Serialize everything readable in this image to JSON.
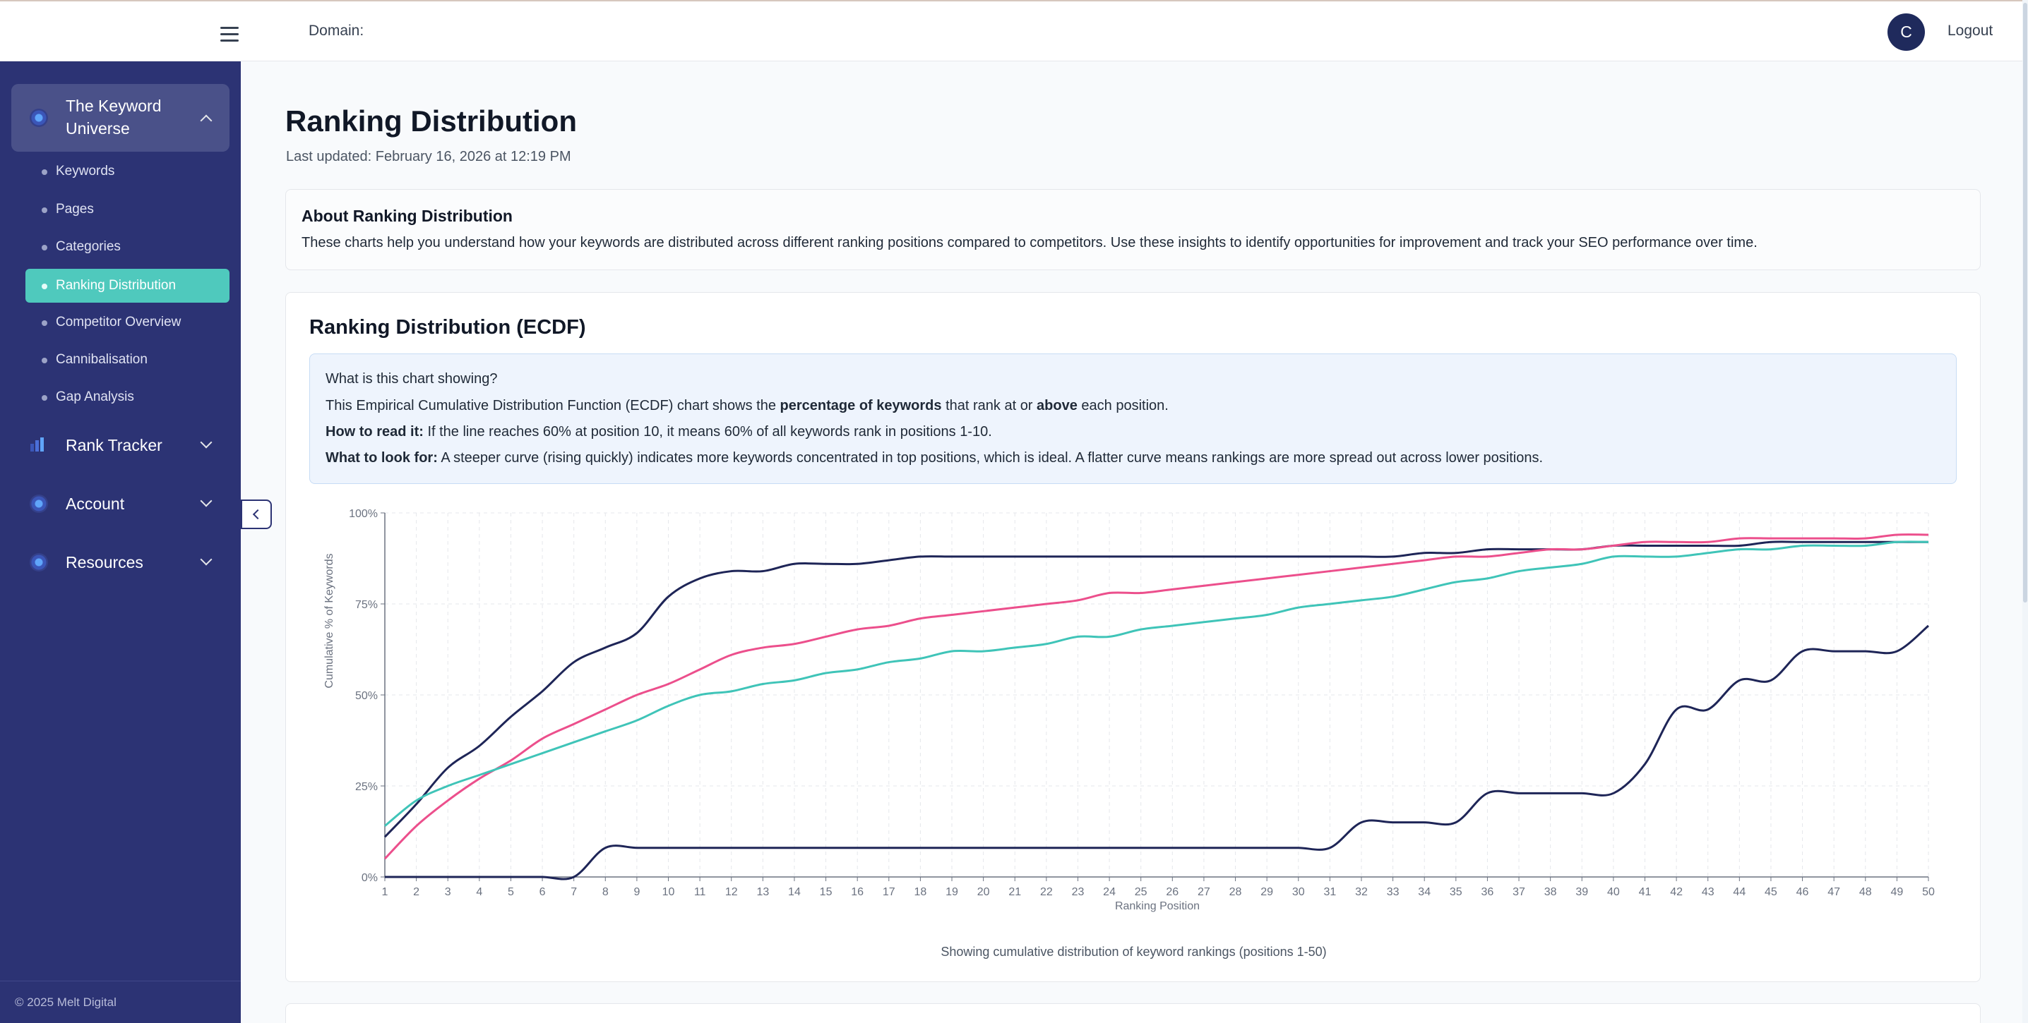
{
  "topbar": {
    "domain_label": "Domain:",
    "avatar_initial": "C",
    "logout_label": "Logout"
  },
  "sidebar": {
    "groups": [
      {
        "title_line1": "The Keyword",
        "title_line2": "Universe",
        "expanded": true,
        "items": [
          {
            "label": "Keywords"
          },
          {
            "label": "Pages"
          },
          {
            "label": "Categories"
          },
          {
            "label": "Ranking Distribution",
            "active": true
          },
          {
            "label": "Competitor Overview"
          },
          {
            "label": "Cannibalisation"
          },
          {
            "label": "Gap Analysis"
          }
        ]
      },
      {
        "title": "Rank Tracker",
        "expanded": false
      },
      {
        "title": "Account",
        "expanded": false
      },
      {
        "title": "Resources",
        "expanded": false
      }
    ],
    "copyright": "© 2025 Melt Digital"
  },
  "main": {
    "title": "Ranking Distribution",
    "last_updated": "Last updated: February 16, 2026 at 12:19 PM",
    "about": {
      "title": "About Ranking Distribution",
      "text": "These charts help you understand how your keywords are distributed across different ranking positions compared to competitors. Use these insights to identify opportunities for improvement and track your SEO performance over time."
    },
    "chart_card": {
      "title": "Ranking Distribution (ECDF)",
      "info": {
        "question": "What is this chart showing?",
        "line1_pre": "This Empirical Cumulative Distribution Function (ECDF) chart shows the ",
        "line1_b1": "percentage of keywords",
        "line1_mid": " that rank at or ",
        "line1_b2": "above",
        "line1_post": " each position.",
        "line2_b": "How to read it:",
        "line2_text": " If the line reaches 60% at position 10, it means 60% of all keywords rank in positions 1-10.",
        "line3_b": "What to look for:",
        "line3_text": " A steeper curve (rising quickly) indicates more keywords concentrated in top positions, which is ideal. A flatter curve means rankings are more spread out across lower positions."
      },
      "caption": "Showing cumulative distribution of keyword rankings (positions 1-50)"
    }
  },
  "chart_data": {
    "type": "line",
    "xlabel": "Ranking Position",
    "ylabel": "Cumulative % of Keywords",
    "xlim": [
      1,
      50
    ],
    "ylim": [
      0,
      100
    ],
    "y_ticks": [
      "0%",
      "25%",
      "50%",
      "75%",
      "100%"
    ],
    "grid": true,
    "x": [
      1,
      2,
      3,
      4,
      5,
      6,
      7,
      8,
      9,
      10,
      11,
      12,
      13,
      14,
      15,
      16,
      17,
      18,
      19,
      20,
      21,
      22,
      23,
      24,
      25,
      26,
      27,
      28,
      29,
      30,
      31,
      32,
      33,
      34,
      35,
      36,
      37,
      38,
      39,
      40,
      41,
      42,
      43,
      44,
      45,
      46,
      47,
      48,
      49,
      50
    ],
    "series": [
      {
        "color": "#1e2557",
        "values": [
          11,
          20,
          30,
          36,
          44,
          51,
          59,
          63,
          67,
          77,
          82,
          84,
          84,
          86,
          86,
          86,
          87,
          88,
          88,
          88,
          88,
          88,
          88,
          88,
          88,
          88,
          88,
          88,
          88,
          88,
          88,
          88,
          88,
          89,
          89,
          90,
          90,
          90,
          90,
          91,
          91,
          91,
          91,
          91,
          92,
          92,
          92,
          92,
          92,
          92
        ]
      },
      {
        "color": "#ec4f8c",
        "values": [
          5,
          14,
          21,
          27,
          32,
          38,
          42,
          46,
          50,
          53,
          57,
          61,
          63,
          64,
          66,
          68,
          69,
          71,
          72,
          73,
          74,
          75,
          76,
          78,
          78,
          79,
          80,
          81,
          82,
          83,
          84,
          85,
          86,
          87,
          88,
          88,
          89,
          90,
          90,
          91,
          92,
          92,
          92,
          93,
          93,
          93,
          93,
          93,
          94,
          94
        ]
      },
      {
        "color": "#3fc4b8",
        "values": [
          14,
          21,
          25,
          28,
          31,
          34,
          37,
          40,
          43,
          47,
          50,
          51,
          53,
          54,
          56,
          57,
          59,
          60,
          62,
          62,
          63,
          64,
          66,
          66,
          68,
          69,
          70,
          71,
          72,
          74,
          75,
          76,
          77,
          79,
          81,
          82,
          84,
          85,
          86,
          88,
          88,
          88,
          89,
          90,
          90,
          91,
          91,
          91,
          92,
          92
        ]
      },
      {
        "color": "#1e2557",
        "values": [
          0,
          0,
          0,
          0,
          0,
          0,
          0,
          8,
          8,
          8,
          8,
          8,
          8,
          8,
          8,
          8,
          8,
          8,
          8,
          8,
          8,
          8,
          8,
          8,
          8,
          8,
          8,
          8,
          8,
          8,
          8,
          15,
          15,
          15,
          15,
          23,
          23,
          23,
          23,
          23,
          31,
          46,
          46,
          54,
          54,
          62,
          62,
          62,
          62,
          69
        ]
      }
    ]
  },
  "colors": {
    "sidebar_bg": "#2c3374",
    "active_item": "#4fc9bd",
    "info_bg": "#eef4fd"
  }
}
